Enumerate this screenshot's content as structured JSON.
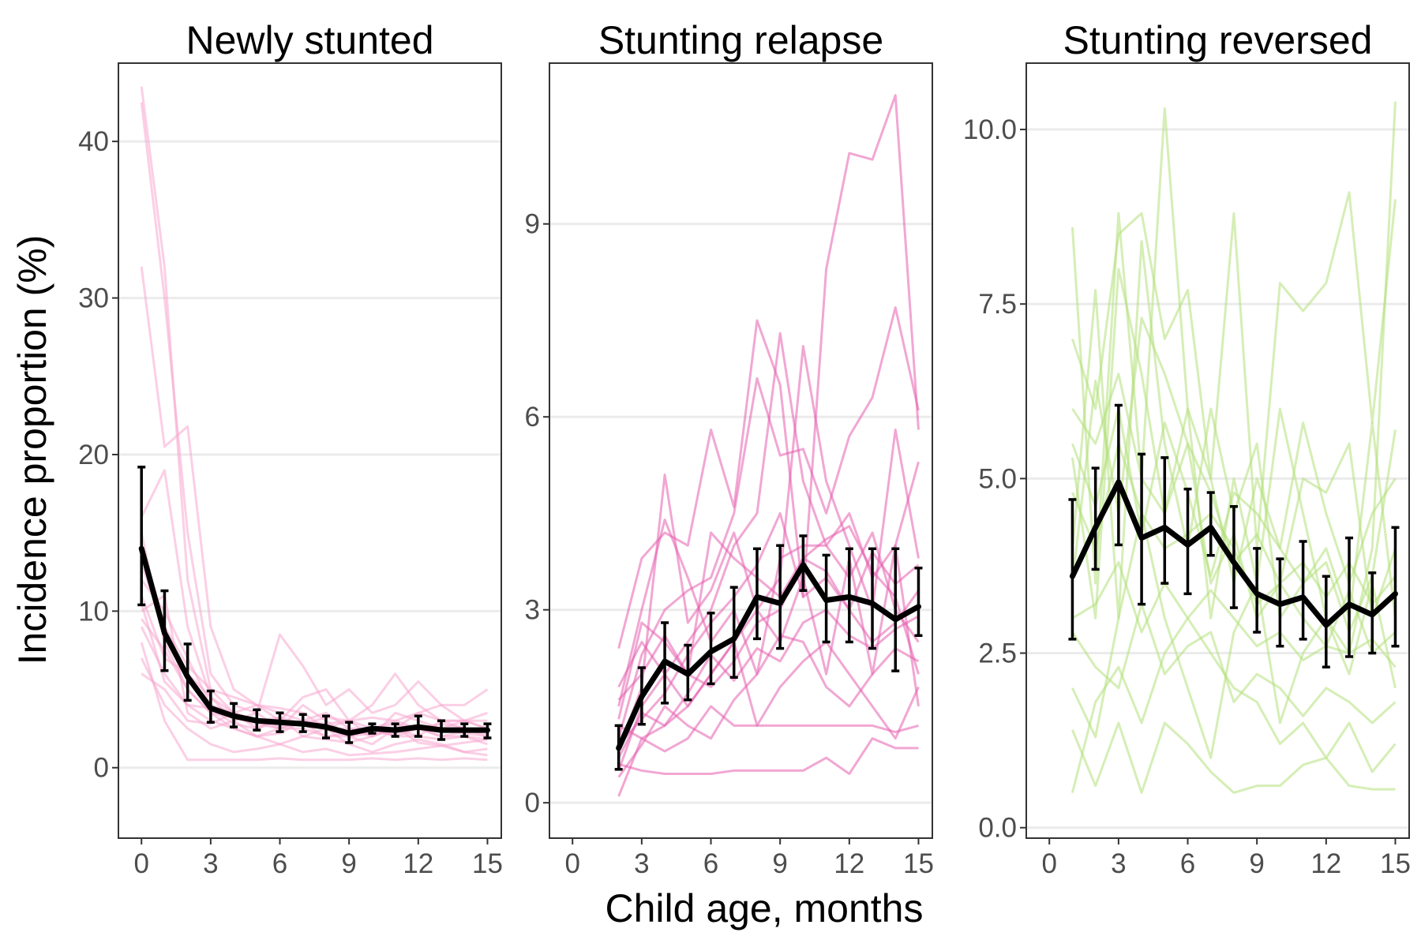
{
  "chart_data": {
    "type": "line",
    "ylabel": "Incidence proportion (%)",
    "xlabel": "Child age, months",
    "colors": {
      "newly": "#f7a8d0",
      "relapse": "#e55fae",
      "reversed": "#b3e07a",
      "pooled": "#000000"
    },
    "panels": [
      {
        "title": "Newly stunted",
        "xlim": [
          -1,
          15.6
        ],
        "ylim": [
          -4.5,
          45
        ],
        "x_ticks": [
          0,
          3,
          6,
          9,
          12,
          15
        ],
        "x_tick_labels": [
          "0",
          "3",
          "6",
          "9",
          "12",
          "15"
        ],
        "y_ticks": [
          0,
          10,
          20,
          30,
          40
        ],
        "y_tick_labels": [
          "0",
          "10",
          "20",
          "30",
          "40"
        ],
        "color_key": "newly",
        "pooled": {
          "x": [
            0,
            1,
            2,
            3,
            4,
            5,
            6,
            7,
            8,
            9,
            10,
            11,
            12,
            13,
            14,
            15
          ],
          "y": [
            14,
            8.6,
            5.8,
            3.8,
            3.3,
            3.0,
            2.9,
            2.8,
            2.6,
            2.2,
            2.5,
            2.4,
            2.6,
            2.4,
            2.4,
            2.4
          ],
          "lower": [
            10.4,
            6.2,
            4.3,
            2.9,
            2.6,
            2.4,
            2.3,
            2.3,
            1.9,
            1.6,
            2.2,
            2.0,
            2.0,
            1.8,
            2.0,
            1.9
          ],
          "upper": [
            19.2,
            11.3,
            7.9,
            4.9,
            4.1,
            3.7,
            3.5,
            3.4,
            3.3,
            2.9,
            2.8,
            2.8,
            3.3,
            3.0,
            2.8,
            2.8
          ]
        },
        "cohorts_x": [
          0,
          1,
          2,
          3,
          4,
          5,
          6,
          7,
          8,
          9,
          10,
          11,
          12,
          13,
          14,
          15
        ],
        "cohorts": [
          [
            43.5,
            32,
            12,
            5,
            3.5,
            3,
            2.5,
            4,
            3,
            2,
            2.5,
            2,
            2,
            3,
            2.5,
            2
          ],
          [
            42.5,
            30,
            15,
            6,
            4,
            3.5,
            2.5,
            3,
            2.5,
            2.5,
            2,
            3.5,
            3,
            2.5,
            3,
            2.5
          ],
          [
            32,
            20.5,
            21.8,
            9,
            5,
            4,
            3,
            2.8,
            3.2,
            3,
            2,
            2.5,
            3.5,
            4,
            3,
            3
          ],
          [
            16,
            19,
            9,
            4.5,
            3,
            3.5,
            8.5,
            6.5,
            4,
            5,
            3.5,
            4,
            5.5,
            4,
            4,
            5
          ],
          [
            12,
            10,
            7,
            4,
            3.5,
            2.5,
            3,
            4.5,
            5,
            3,
            4,
            6,
            4,
            3,
            3,
            2.5
          ],
          [
            10,
            11,
            3.5,
            2.5,
            3,
            2,
            2.2,
            3,
            2.5,
            2,
            1.5,
            2.5,
            2,
            1.8,
            2,
            1.5
          ],
          [
            9,
            6,
            4,
            3,
            2.5,
            2,
            1.5,
            2,
            2.5,
            1.5,
            1,
            1.5,
            1.8,
            1.5,
            1,
            1.2
          ],
          [
            7,
            4,
            2.5,
            1.5,
            1,
            1.2,
            1.5,
            1,
            1.2,
            0.8,
            0.9,
            1,
            1.2,
            1.4,
            1,
            0.8
          ],
          [
            6,
            5,
            3,
            2.8,
            3.5,
            4,
            3.8,
            3.5,
            2.5,
            3,
            2.5,
            3,
            2.5,
            2,
            2,
            1.8
          ],
          [
            8,
            3,
            0.5,
            0.5,
            0.5,
            0.5,
            0.6,
            0.5,
            0.5,
            0.5,
            0.6,
            0.5,
            0.6,
            0.5,
            0.6,
            0.5
          ],
          [
            11,
            7,
            6,
            4.5,
            3.5,
            3,
            3.2,
            2.8,
            2,
            2.2,
            2.5,
            2,
            2.5,
            2.8,
            2.5,
            2.2
          ],
          [
            15,
            8,
            5,
            3.5,
            2.5,
            2,
            2.5,
            3,
            3.5,
            2.5,
            2.5,
            2.8,
            2.5,
            2.5,
            2.2,
            2
          ],
          [
            13,
            9,
            6.5,
            5,
            4.5,
            4,
            3.5,
            3,
            2.8,
            3,
            3.2,
            3,
            3.5,
            3,
            3,
            3.5
          ],
          [
            9.5,
            7.5,
            5,
            3.5,
            3.2,
            2.8,
            2.5,
            2.5,
            2,
            2,
            2.2,
            2.2,
            2.5,
            2,
            2.3,
            2.5
          ],
          [
            10.5,
            5.5,
            4,
            3.8,
            2.8,
            2.5,
            3.2,
            2,
            1.8,
            1.6,
            2,
            2.6,
            1.6,
            1.4,
            1.6,
            1.8
          ]
        ]
      },
      {
        "title": "Stunting relapse",
        "xlim": [
          -1,
          15.6
        ],
        "ylim": [
          -0.55,
          11.5
        ],
        "x_ticks": [
          0,
          3,
          6,
          9,
          12,
          15
        ],
        "x_tick_labels": [
          "0",
          "3",
          "6",
          "9",
          "12",
          "15"
        ],
        "y_ticks": [
          0,
          3,
          6,
          9
        ],
        "y_tick_labels": [
          "0",
          "3",
          "6",
          "9"
        ],
        "color_key": "relapse",
        "pooled": {
          "x": [
            2,
            3,
            4,
            5,
            6,
            7,
            8,
            9,
            10,
            11,
            12,
            13,
            14,
            15
          ],
          "y": [
            0.85,
            1.65,
            2.2,
            2.0,
            2.35,
            2.55,
            3.2,
            3.1,
            3.7,
            3.15,
            3.2,
            3.1,
            2.85,
            3.05
          ],
          "lower": [
            0.52,
            1.22,
            1.55,
            1.6,
            1.85,
            1.95,
            2.55,
            2.4,
            3.3,
            2.5,
            2.5,
            2.4,
            2.05,
            2.6
          ],
          "upper": [
            1.2,
            2.1,
            2.8,
            2.45,
            2.95,
            3.35,
            3.95,
            4.0,
            4.15,
            3.85,
            3.95,
            3.95,
            3.95,
            3.65
          ]
        },
        "cohorts_x": [
          2,
          3,
          4,
          5,
          6,
          7,
          8,
          9,
          10,
          11,
          12,
          13,
          14,
          15
        ],
        "cohorts": [
          [
            2.4,
            3.8,
            4.2,
            4.0,
            5.8,
            4.6,
            7.5,
            6.5,
            3.2,
            8.3,
            10.1,
            10.0,
            11.0,
            5.8
          ],
          [
            1.0,
            2.3,
            3.0,
            3.3,
            3.5,
            4.5,
            6.6,
            5.4,
            5.5,
            4.5,
            5.7,
            6.3,
            7.7,
            6.1
          ],
          [
            0.5,
            1.5,
            2.0,
            2.5,
            3.0,
            4.0,
            4.5,
            7.3,
            5.0,
            4.0,
            4.5,
            3.5,
            4.0,
            5.3
          ],
          [
            0.1,
            1.0,
            1.2,
            1.5,
            2.0,
            2.5,
            3.0,
            3.5,
            7.1,
            5.0,
            4.0,
            3.0,
            5.8,
            3.8
          ],
          [
            1.5,
            3.0,
            4.4,
            3.5,
            2.5,
            3.0,
            2.0,
            3.8,
            4.0,
            4.0,
            3.5,
            4.2,
            3.0,
            2.5
          ],
          [
            0.8,
            1.8,
            5.1,
            2.8,
            3.3,
            4.2,
            3.0,
            2.5,
            3.5,
            2.0,
            3.8,
            2.0,
            4.0,
            1.5
          ],
          [
            1.8,
            2.5,
            2.0,
            1.5,
            2.0,
            2.5,
            1.2,
            1.8,
            2.2,
            2.5,
            2.0,
            1.5,
            1.0,
            1.8
          ],
          [
            1.2,
            1.0,
            0.8,
            1.0,
            1.5,
            1.2,
            1.2,
            1.2,
            1.2,
            1.2,
            1.2,
            1.2,
            1.1,
            1.2
          ],
          [
            0.6,
            0.5,
            0.45,
            0.45,
            0.45,
            0.5,
            0.5,
            0.5,
            0.5,
            0.7,
            0.45,
            1.0,
            0.85,
            0.85
          ],
          [
            0.9,
            1.3,
            1.7,
            2.3,
            2.8,
            3.2,
            3.7,
            4.5,
            3.2,
            3.5,
            3.0,
            2.5,
            2.8,
            3.3
          ],
          [
            1.6,
            2.0,
            2.6,
            2.0,
            1.8,
            2.2,
            2.8,
            3.0,
            3.8,
            4.1,
            4.3,
            3.6,
            3.2,
            2.0
          ],
          [
            0.4,
            0.9,
            1.5,
            1.2,
            1.0,
            1.6,
            2.0,
            2.6,
            2.5,
            1.8,
            1.5,
            2.0,
            2.4,
            2.2
          ],
          [
            1.3,
            2.8,
            2.5,
            2.0,
            4.2,
            3.8,
            3.5,
            3.2,
            3.8,
            3.6,
            3.0,
            3.9,
            3.4,
            3.7
          ],
          [
            0.7,
            1.4,
            1.2,
            1.7,
            2.3,
            1.9,
            2.4,
            2.2,
            2.8,
            3.0,
            2.6,
            2.4,
            2.7,
            2.9
          ]
        ]
      },
      {
        "title": "Stunting reversed",
        "xlim": [
          -1,
          15.6
        ],
        "ylim": [
          -0.15,
          10.95
        ],
        "x_ticks": [
          0,
          3,
          6,
          9,
          12,
          15
        ],
        "x_tick_labels": [
          "0",
          "3",
          "6",
          "9",
          "12",
          "15"
        ],
        "y_ticks": [
          0,
          2.5,
          5,
          7.5,
          10
        ],
        "y_tick_labels": [
          "0.0",
          "2.5",
          "5.0",
          "7.5",
          "10.0"
        ],
        "color_key": "reversed",
        "pooled": {
          "x": [
            1,
            2,
            3,
            4,
            5,
            6,
            7,
            8,
            9,
            10,
            11,
            12,
            13,
            14,
            15
          ],
          "y": [
            3.6,
            4.3,
            4.95,
            4.15,
            4.3,
            4.05,
            4.3,
            3.8,
            3.35,
            3.2,
            3.3,
            2.9,
            3.2,
            3.05,
            3.35
          ],
          "lower": [
            2.7,
            3.7,
            4.05,
            3.2,
            3.5,
            3.35,
            3.9,
            3.15,
            2.8,
            2.6,
            2.7,
            2.3,
            2.45,
            2.5,
            2.6
          ],
          "upper": [
            4.7,
            5.15,
            6.05,
            5.35,
            5.3,
            4.85,
            4.8,
            4.6,
            4.0,
            3.85,
            4.1,
            3.6,
            4.15,
            3.65,
            4.3
          ]
        },
        "cohorts_x": [
          1,
          2,
          3,
          4,
          5,
          6,
          7,
          8,
          9,
          10,
          11,
          12,
          13,
          14,
          15
        ],
        "cohorts": [
          [
            8.6,
            3.5,
            8.8,
            5.0,
            10.3,
            6.0,
            3.0,
            5.0,
            3.5,
            6.0,
            4.5,
            3.0,
            2.5,
            4.0,
            10.4
          ],
          [
            7.0,
            6.0,
            8.5,
            8.8,
            7.0,
            7.7,
            5.0,
            8.8,
            4.0,
            7.8,
            7.4,
            7.8,
            9.1,
            5.8,
            9.0
          ],
          [
            4.0,
            7.7,
            3.0,
            8.4,
            5.5,
            4.0,
            6.0,
            4.5,
            5.5,
            3.0,
            3.5,
            4.0,
            3.0,
            5.8,
            3.0
          ],
          [
            5.3,
            3.0,
            8.0,
            6.5,
            4.5,
            6.0,
            5.0,
            3.5,
            5.0,
            4.0,
            5.8,
            4.5,
            3.5,
            4.5,
            5.0
          ],
          [
            3.5,
            6.4,
            4.5,
            7.3,
            6.5,
            5.5,
            3.5,
            4.2,
            3.0,
            3.5,
            5.0,
            4.8,
            5.5,
            3.0,
            4.0
          ],
          [
            2.0,
            1.3,
            3.0,
            4.5,
            3.0,
            2.0,
            1.0,
            2.8,
            3.5,
            1.5,
            2.5,
            3.0,
            2.2,
            3.5,
            2.0
          ],
          [
            1.4,
            0.6,
            1.5,
            0.5,
            1.5,
            1.2,
            0.8,
            0.5,
            0.6,
            0.6,
            0.9,
            1.0,
            0.6,
            0.55,
            0.55
          ],
          [
            0.5,
            1.8,
            2.3,
            1.5,
            2.5,
            3.0,
            2.5,
            2.0,
            1.8,
            1.2,
            1.5,
            1.0,
            1.5,
            0.8,
            1.2
          ],
          [
            6.0,
            5.5,
            6.5,
            5.0,
            4.5,
            5.5,
            4.8,
            3.8,
            4.2,
            3.5,
            3.8,
            3.3,
            3.8,
            3.2,
            3.6
          ],
          [
            3.0,
            3.2,
            3.8,
            2.8,
            3.5,
            3.0,
            3.4,
            3.0,
            2.6,
            2.8,
            2.4,
            2.6,
            2.5,
            2.7,
            2.3
          ],
          [
            4.8,
            4.0,
            5.5,
            4.5,
            4.0,
            4.2,
            4.5,
            4.0,
            3.2,
            3.5,
            3.0,
            2.6,
            3.4,
            2.5,
            2.8
          ],
          [
            2.8,
            2.3,
            2.0,
            3.2,
            2.2,
            2.6,
            2.8,
            1.8,
            2.2,
            2.0,
            1.6,
            2.0,
            1.8,
            1.5,
            1.8
          ],
          [
            5.5,
            4.6,
            6.0,
            4.2,
            5.8,
            4.8,
            3.6,
            4.8,
            4.5,
            4.0,
            3.5,
            3.8,
            2.8,
            3.6,
            5.7
          ]
        ]
      }
    ]
  }
}
